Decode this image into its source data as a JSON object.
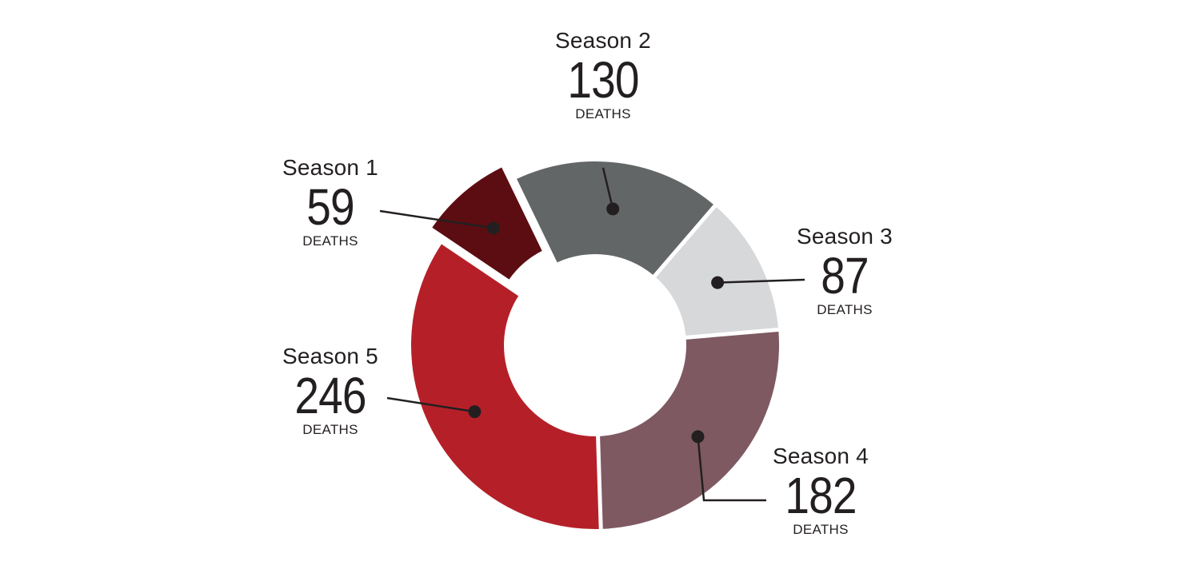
{
  "chart_data": {
    "type": "pie",
    "variant": "donut",
    "categories": [
      "Season 1",
      "Season 2",
      "Season 3",
      "Season 4",
      "Season 5"
    ],
    "values": [
      59,
      130,
      87,
      182,
      246
    ],
    "unit_label": "DEATHS",
    "colors": [
      "#5c0d12",
      "#636666",
      "#d7d8da",
      "#7e5962",
      "#b52028"
    ],
    "legend": "none"
  }
}
